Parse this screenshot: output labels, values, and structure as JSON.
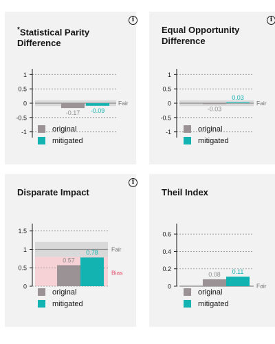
{
  "colors": {
    "original": "#9a9295",
    "mitigated": "#12b3b0",
    "fair_band": "#d9d9d9",
    "bias_band": "#f6d1d6",
    "bias_text": "#e3506a",
    "label_text": "#8d8d8d"
  },
  "legend": {
    "original": "original",
    "mitigated": "mitigated"
  },
  "cards": [
    {
      "title_prefix": "*",
      "title_line1": "Statistical Parity",
      "title_line2": "Difference",
      "has_info": true,
      "info_glyph": "i"
    },
    {
      "title_prefix": "",
      "title_line1": "Equal Opportunity",
      "title_line2": "Difference",
      "has_info": true,
      "info_glyph": "i"
    },
    {
      "title_prefix": "",
      "title_line1": "Disparate Impact",
      "title_line2": "",
      "has_info": true,
      "info_glyph": "i"
    },
    {
      "title_prefix": "",
      "title_line1": "Theil Index",
      "title_line2": "",
      "has_info": false,
      "info_glyph": ""
    }
  ],
  "chart_data": [
    {
      "type": "bar",
      "title": "*Statistical Parity Difference",
      "series": [
        {
          "name": "original",
          "values": [
            -0.17
          ],
          "label": "-0.17"
        },
        {
          "name": "mitigated",
          "values": [
            -0.09
          ],
          "label": "-0.09"
        }
      ],
      "ylim": [
        -1.2,
        1.2
      ],
      "yticks": [
        1,
        0.5,
        0,
        -0.5,
        -1
      ],
      "ytick_labels": [
        "1",
        "0.5",
        "0",
        "-0.5",
        "-1"
      ],
      "fair_band": [
        -0.1,
        0.1
      ],
      "fair_label": "Fair",
      "grid": true
    },
    {
      "type": "bar",
      "title": "Equal Opportunity Difference",
      "series": [
        {
          "name": "original",
          "values": [
            -0.03
          ],
          "label": "-0.03"
        },
        {
          "name": "mitigated",
          "values": [
            0.03
          ],
          "label": "0.03"
        }
      ],
      "ylim": [
        -1.2,
        1.2
      ],
      "yticks": [
        1,
        0.5,
        0,
        -0.5,
        -1
      ],
      "ytick_labels": [
        "1",
        "0.5",
        "0",
        "-0.5",
        "-1"
      ],
      "fair_band": [
        -0.1,
        0.1
      ],
      "fair_label": "Fair",
      "grid": true
    },
    {
      "type": "bar",
      "title": "Disparate Impact",
      "series": [
        {
          "name": "original",
          "values": [
            0.57
          ],
          "label": "0.57"
        },
        {
          "name": "mitigated",
          "values": [
            0.78
          ],
          "label": "0.78"
        }
      ],
      "ylim": [
        0,
        1.7
      ],
      "yticks": [
        1.5,
        1,
        0.5,
        0
      ],
      "ytick_labels": [
        "1.5",
        "1",
        "0.5",
        "0"
      ],
      "fair_band": [
        0.8,
        1.2
      ],
      "bias_band": [
        0,
        0.8
      ],
      "reference_line": 1,
      "fair_label": "Fair",
      "bias_label": "Bias",
      "grid": true
    },
    {
      "type": "bar",
      "title": "Theil Index",
      "series": [
        {
          "name": "original",
          "values": [
            0.08
          ],
          "label": "0.08"
        },
        {
          "name": "mitigated",
          "values": [
            0.11
          ],
          "label": "0.11"
        }
      ],
      "ylim": [
        0,
        0.72
      ],
      "yticks": [
        0.6,
        0.4,
        0.2,
        0
      ],
      "ytick_labels": [
        "0.6",
        "0.4",
        "0.2",
        "0"
      ],
      "fair_band": [
        0,
        0.01
      ],
      "fair_label": "Fair",
      "grid": true
    }
  ]
}
